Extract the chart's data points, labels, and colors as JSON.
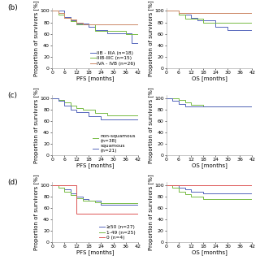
{
  "panels": [
    {
      "label": "(b)",
      "row": 0,
      "col": 0,
      "xlabel": "PFS [months]",
      "ylabel": "Proportion of survivors [%]",
      "xlim": [
        0,
        42
      ],
      "ylim": [
        0,
        105
      ],
      "xticks": [
        0,
        6,
        12,
        18,
        24,
        30,
        36,
        42
      ],
      "yticks": [
        0,
        20,
        40,
        60,
        80,
        100
      ],
      "legend_loc": "inside_right",
      "series": [
        {
          "label": "IIB - IIIA (n=18)",
          "color": "#5566bb",
          "x": [
            0,
            3,
            6,
            9,
            12,
            15,
            18,
            21,
            24,
            27,
            30,
            33,
            36,
            39,
            42
          ],
          "y": [
            100,
            100,
            89,
            83,
            78,
            78,
            72,
            67,
            67,
            61,
            61,
            61,
            61,
            44,
            44
          ]
        },
        {
          "label": "IIIB-IIIC (n=15)",
          "color": "#77bb44",
          "x": [
            0,
            3,
            6,
            9,
            12,
            15,
            18,
            21,
            24,
            27,
            30,
            33,
            36,
            39,
            42
          ],
          "y": [
            100,
            94,
            88,
            82,
            76,
            76,
            76,
            65,
            65,
            65,
            65,
            65,
            60,
            60,
            60
          ]
        },
        {
          "label": "IVA - IVB (n=26)",
          "color": "#cc8866",
          "x": [
            0,
            3,
            6,
            9,
            12,
            15,
            18,
            21,
            24,
            27,
            30,
            33,
            36,
            39,
            42
          ],
          "y": [
            100,
            96,
            88,
            85,
            80,
            77,
            77,
            77,
            77,
            77,
            77,
            77,
            77,
            77,
            77
          ]
        }
      ]
    },
    {
      "label": "",
      "row": 0,
      "col": 1,
      "xlabel": "OS [months]",
      "ylabel": "Proportion of survivors [%]",
      "xlim": [
        0,
        42
      ],
      "ylim": [
        0,
        105
      ],
      "xticks": [
        0,
        6,
        12,
        18,
        24,
        30,
        36,
        42
      ],
      "yticks": [
        0,
        20,
        40,
        60,
        80,
        100
      ],
      "legend_loc": "none",
      "series": [
        {
          "label": "IIB - IIIA (n=18)",
          "color": "#5566bb",
          "x": [
            0,
            3,
            6,
            9,
            12,
            15,
            18,
            21,
            24,
            27,
            30,
            33,
            36,
            39,
            42
          ],
          "y": [
            100,
            100,
            94,
            94,
            88,
            83,
            83,
            83,
            72,
            72,
            67,
            67,
            67,
            67,
            67
          ]
        },
        {
          "label": "IIIB-IIIC (n=15)",
          "color": "#77bb44",
          "x": [
            0,
            3,
            6,
            9,
            12,
            15,
            18,
            21,
            24,
            27,
            30,
            33,
            36,
            39,
            42
          ],
          "y": [
            100,
            100,
            93,
            86,
            86,
            86,
            79,
            79,
            79,
            79,
            79,
            79,
            79,
            79,
            79
          ]
        },
        {
          "label": "IVA - IVB (n=26)",
          "color": "#cc8866",
          "x": [
            0,
            3,
            6,
            9,
            12,
            15,
            18,
            21,
            24,
            27,
            30,
            33,
            36,
            39,
            42
          ],
          "y": [
            100,
            100,
            96,
            96,
            96,
            96,
            96,
            96,
            96,
            96,
            96,
            96,
            96,
            96,
            96
          ]
        }
      ]
    },
    {
      "label": "(c)",
      "row": 1,
      "col": 0,
      "xlabel": "PFS [months]",
      "ylabel": "Proportion of survivors [%]",
      "xlim": [
        0,
        42
      ],
      "ylim": [
        0,
        105
      ],
      "xticks": [
        0,
        6,
        12,
        18,
        24,
        30,
        36,
        42
      ],
      "yticks": [
        0,
        20,
        40,
        60,
        80,
        100
      ],
      "legend_loc": "inside_right",
      "series": [
        {
          "label": "non-squamous\n(n=38)",
          "color": "#77bb44",
          "x": [
            0,
            3,
            6,
            9,
            12,
            15,
            18,
            21,
            24,
            27,
            30,
            33,
            36,
            39,
            42
          ],
          "y": [
            100,
            97,
            92,
            87,
            82,
            79,
            79,
            74,
            74,
            69,
            69,
            69,
            69,
            69,
            58
          ]
        },
        {
          "label": "squamous\n(n=21)",
          "color": "#5566bb",
          "x": [
            0,
            3,
            6,
            9,
            12,
            15,
            18,
            21,
            24,
            27,
            30,
            33,
            36,
            39,
            42
          ],
          "y": [
            100,
            95,
            86,
            80,
            75,
            75,
            68,
            68,
            62,
            62,
            62,
            62,
            62,
            62,
            62
          ]
        }
      ]
    },
    {
      "label": "",
      "row": 1,
      "col": 1,
      "xlabel": "OS [months]",
      "ylabel": "Proportion of survivors [%]",
      "xlim": [
        0,
        42
      ],
      "ylim": [
        0,
        105
      ],
      "xticks": [
        0,
        6,
        12,
        18,
        24,
        30,
        36,
        42
      ],
      "yticks": [
        0,
        20,
        40,
        60,
        80,
        100
      ],
      "legend_loc": "none",
      "series": [
        {
          "label": "non-squamous\n(n=38)",
          "color": "#77bb44",
          "x": [
            0,
            3,
            6,
            9,
            12,
            15,
            18,
            21,
            24,
            27,
            30,
            33,
            36,
            39,
            42
          ],
          "y": [
            100,
            100,
            97,
            92,
            88,
            88,
            85,
            85,
            85,
            85,
            85,
            85,
            85,
            85,
            85
          ]
        },
        {
          "label": "squamous\n(n=21)",
          "color": "#5566bb",
          "x": [
            0,
            3,
            6,
            9,
            12,
            15,
            18,
            21,
            24,
            27,
            30,
            33,
            36,
            39,
            42
          ],
          "y": [
            100,
            95,
            90,
            85,
            85,
            85,
            85,
            85,
            85,
            85,
            85,
            85,
            85,
            85,
            85
          ]
        }
      ]
    },
    {
      "label": "(d)",
      "row": 2,
      "col": 0,
      "xlabel": "PFS [months]",
      "ylabel": "Proportion of survivors [%]",
      "xlim": [
        0,
        42
      ],
      "ylim": [
        0,
        105
      ],
      "xticks": [
        0,
        6,
        12,
        18,
        24,
        30,
        36,
        42
      ],
      "yticks": [
        0,
        20,
        40,
        60,
        80,
        100
      ],
      "legend_loc": "inside_right",
      "series": [
        {
          "label": "≥50 (n=27)",
          "color": "#5566bb",
          "x": [
            0,
            3,
            6,
            9,
            12,
            15,
            18,
            21,
            24,
            27,
            30,
            33,
            36,
            39,
            42
          ],
          "y": [
            100,
            96,
            92,
            85,
            80,
            76,
            72,
            72,
            65,
            65,
            65,
            65,
            65,
            65,
            48
          ]
        },
        {
          "label": "1-49 (n=25)",
          "color": "#77bb44",
          "x": [
            0,
            3,
            6,
            9,
            12,
            15,
            18,
            21,
            24,
            27,
            30,
            33,
            36,
            39,
            42
          ],
          "y": [
            100,
            96,
            88,
            82,
            77,
            73,
            73,
            70,
            68,
            68,
            68,
            68,
            68,
            68,
            68
          ]
        },
        {
          "label": "0 (n=4)",
          "color": "#dd5555",
          "x": [
            0,
            3,
            6,
            9,
            12,
            15,
            18,
            21,
            24,
            27,
            30,
            33,
            36,
            39,
            42
          ],
          "y": [
            100,
            100,
            100,
            100,
            50,
            50,
            50,
            50,
            50,
            50,
            50,
            50,
            50,
            50,
            50
          ]
        }
      ]
    },
    {
      "label": "",
      "row": 2,
      "col": 1,
      "xlabel": "OS [months]",
      "ylabel": "Proportion of survivors [%]",
      "xlim": [
        0,
        42
      ],
      "ylim": [
        0,
        105
      ],
      "xticks": [
        0,
        6,
        12,
        18,
        24,
        30,
        36,
        42
      ],
      "yticks": [
        0,
        20,
        40,
        60,
        80,
        100
      ],
      "legend_loc": "none",
      "series": [
        {
          "label": "≥50 (n=27)",
          "color": "#5566bb",
          "x": [
            0,
            3,
            6,
            9,
            12,
            15,
            18,
            21,
            24,
            27,
            30,
            33,
            36,
            39,
            42
          ],
          "y": [
            100,
            100,
            96,
            92,
            88,
            88,
            85,
            85,
            85,
            85,
            85,
            85,
            85,
            85,
            85
          ]
        },
        {
          "label": "1-49 (n=25)",
          "color": "#77bb44",
          "x": [
            0,
            3,
            6,
            9,
            12,
            15,
            18,
            21,
            24,
            27,
            30,
            33,
            36,
            39,
            42
          ],
          "y": [
            100,
            96,
            88,
            84,
            80,
            80,
            76,
            76,
            76,
            76,
            76,
            76,
            76,
            76,
            76
          ]
        },
        {
          "label": "0 (n=4)",
          "color": "#dd5555",
          "x": [
            0,
            3,
            6,
            9,
            12,
            15,
            18,
            21,
            24,
            27,
            30,
            33,
            36,
            39,
            42
          ],
          "y": [
            100,
            100,
            100,
            100,
            100,
            100,
            100,
            100,
            100,
            100,
            100,
            100,
            100,
            100,
            100
          ]
        }
      ]
    }
  ],
  "background_color": "#ffffff",
  "panel_bg": "#ffffff",
  "tick_fontsize": 4.5,
  "label_fontsize": 5.0,
  "legend_fontsize": 4.2,
  "row_labels": [
    "(b)",
    "(c)",
    "(d)"
  ]
}
